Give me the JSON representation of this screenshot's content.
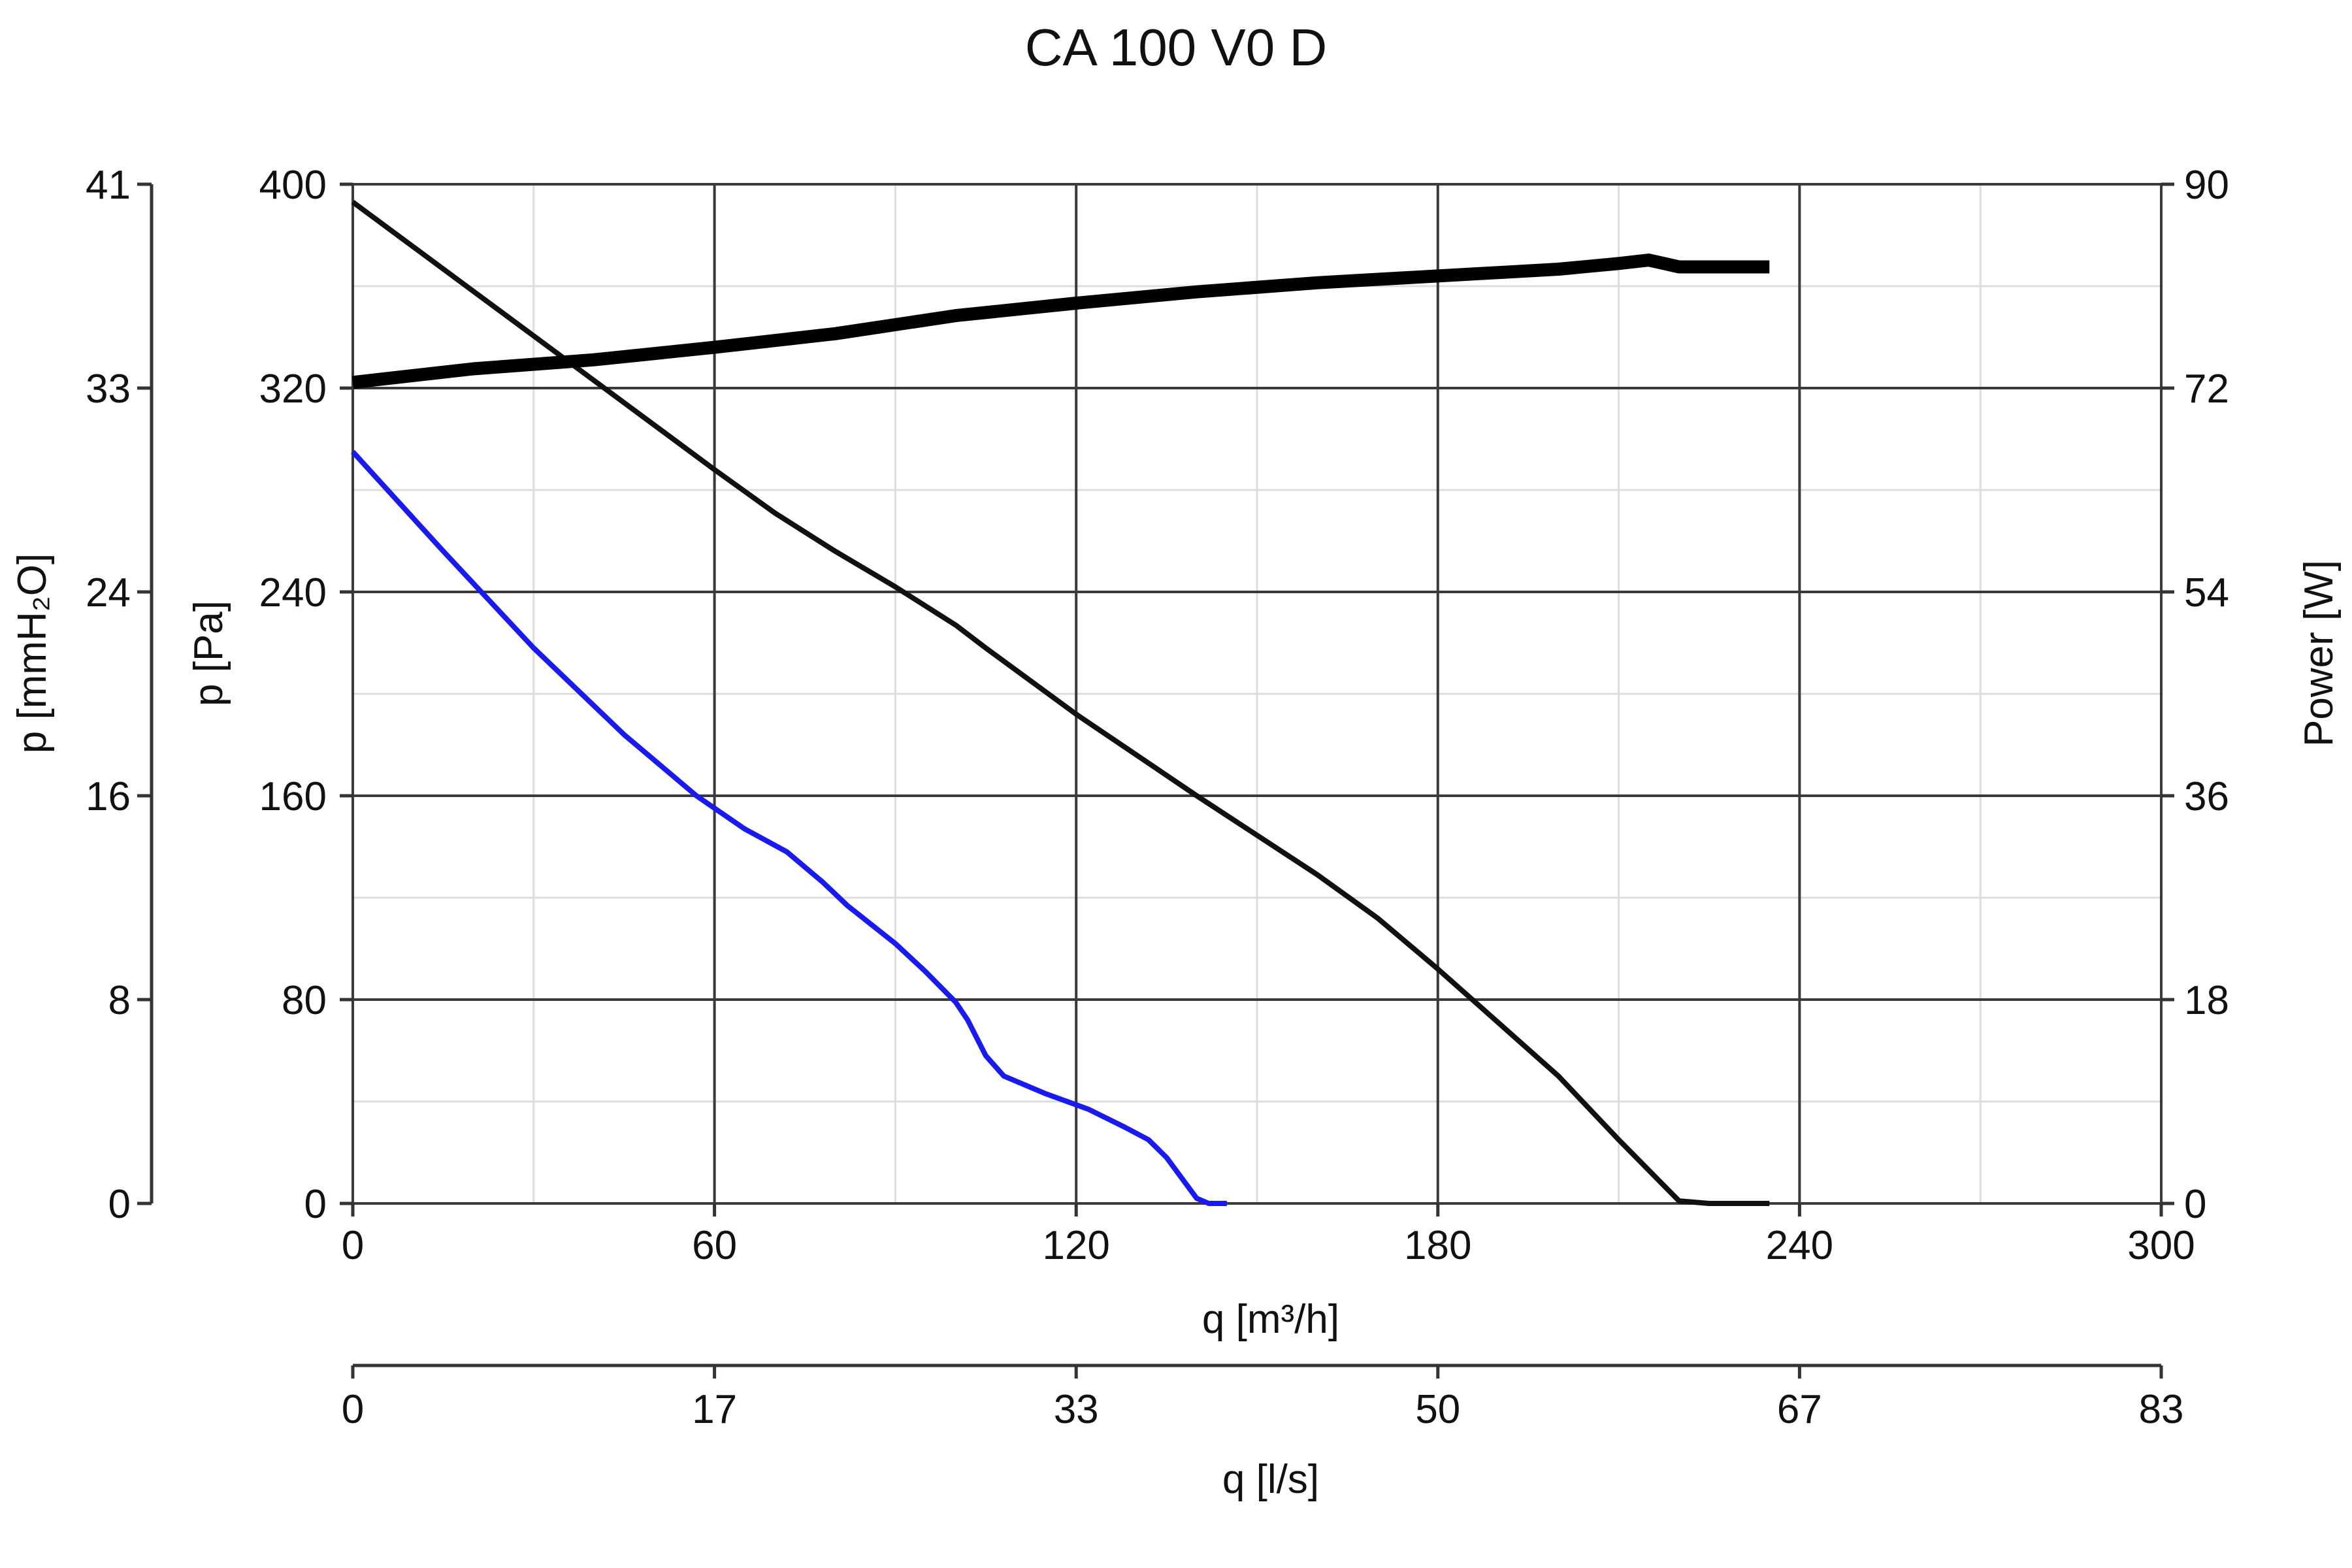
{
  "chart_data": {
    "type": "line",
    "title": "CA 100 V0 D",
    "x_axis": {
      "label": "q [m³/h]",
      "range": [
        0,
        300
      ],
      "ticks": [
        "0",
        "60",
        "120",
        "180",
        "240",
        "300"
      ],
      "minor_step": 30,
      "grid": true
    },
    "x2_axis": {
      "label": "q [l/s]",
      "ticks": [
        "0",
        "17",
        "33",
        "50",
        "67",
        "83"
      ]
    },
    "y_axis": {
      "label": "p [Pa]",
      "range": [
        0,
        400
      ],
      "ticks": [
        "0",
        "80",
        "160",
        "240",
        "320",
        "400"
      ],
      "minor_step": 40,
      "grid": true
    },
    "y2_axis": {
      "label": "p [mmH₂O]",
      "ticks": [
        "0",
        "8",
        "16",
        "24",
        "33",
        "41"
      ]
    },
    "y3_axis": {
      "label": "Power [W]",
      "range": [
        0,
        90
      ],
      "ticks": [
        "0",
        "18",
        "36",
        "54",
        "72",
        "90"
      ]
    },
    "series": [
      {
        "axis": "pressure",
        "color": "#111111",
        "width": "thin",
        "x": [
          0,
          20,
          40,
          60,
          70,
          80,
          90,
          100,
          105,
          120,
          140,
          160,
          170,
          180,
          190,
          200,
          210,
          220,
          225,
          230,
          235
        ],
        "y": [
          393,
          358,
          323,
          288,
          271,
          256,
          242,
          227,
          218,
          192,
          160,
          129,
          112,
          92,
          71,
          50,
          25,
          1,
          -6,
          -10,
          -12
        ]
      },
      {
        "axis": "pressure",
        "color": "#1a1aee",
        "width": "thin",
        "x": [
          0,
          15,
          30,
          45,
          57,
          65,
          72,
          78,
          82,
          90,
          95,
          100,
          102,
          105,
          108,
          115,
          122,
          128,
          132,
          135,
          140,
          142,
          145
        ],
        "y": [
          295,
          256,
          218,
          184,
          160,
          147,
          138,
          126,
          117,
          102,
          91,
          79,
          72,
          58,
          50,
          43,
          37,
          30,
          25,
          18,
          2,
          0,
          0
        ]
      },
      {
        "axis": "power",
        "color": "#000000",
        "width": "thick",
        "x": [
          0,
          20,
          40,
          60,
          80,
          100,
          120,
          140,
          160,
          180,
          200,
          210,
          215,
          220,
          235
        ],
        "y": [
          72.5,
          73.7,
          74.5,
          75.6,
          76.8,
          78.4,
          79.5,
          80.5,
          81.3,
          81.9,
          82.5,
          83.0,
          83.3,
          82.7,
          82.7
        ]
      }
    ]
  }
}
